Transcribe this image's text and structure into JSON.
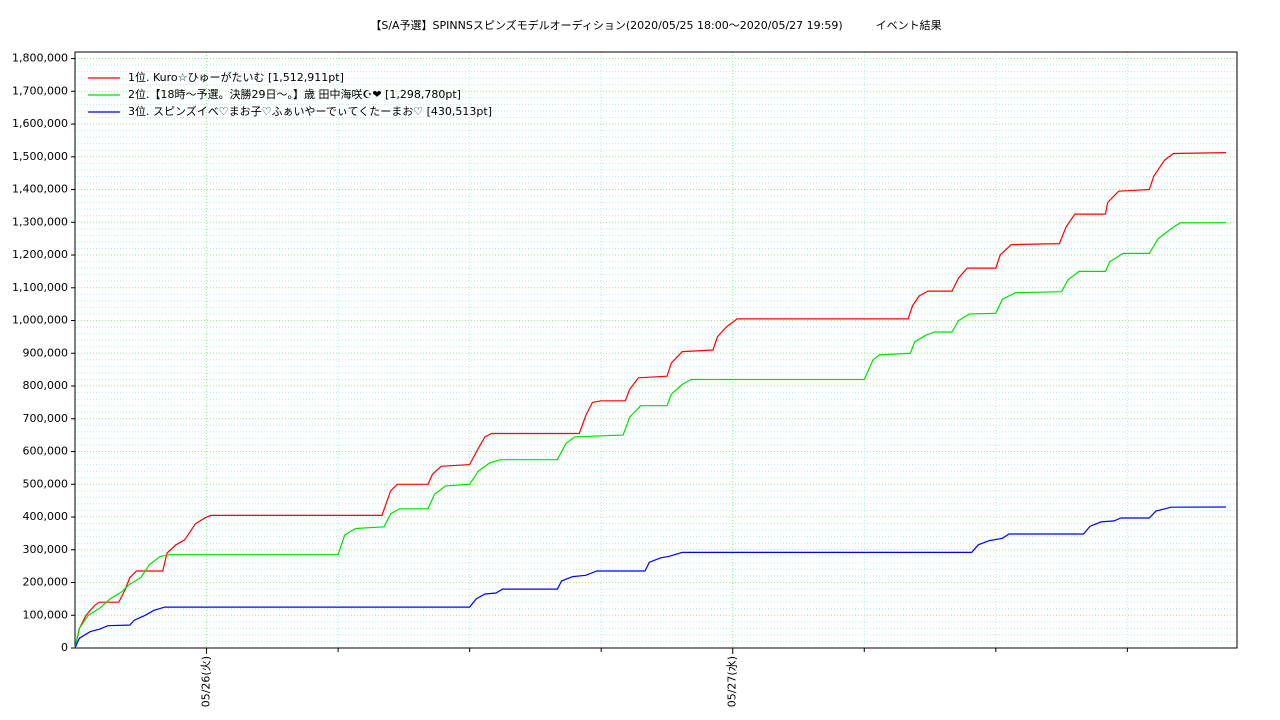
{
  "chart_data": {
    "type": "line",
    "title": "【S/A予選】SPINNSスピンズモデルオーディション(2020/05/25 18:00〜2020/05/27 19:59)　　　イベント結果",
    "xlim": [
      0,
      53
    ],
    "xticks": [
      {
        "value": 6,
        "label": "05/26(火)"
      },
      {
        "value": 30,
        "label": "05/27(水)"
      }
    ],
    "xminor": [
      12,
      18,
      24,
      36,
      42,
      48
    ],
    "ylim": [
      0,
      1820000
    ],
    "yticks": [
      {
        "value": 0,
        "label": "0"
      },
      {
        "value": 100000,
        "label": "100,000"
      },
      {
        "value": 200000,
        "label": "200,000"
      },
      {
        "value": 300000,
        "label": "300,000"
      },
      {
        "value": 400000,
        "label": "400,000"
      },
      {
        "value": 500000,
        "label": "500,000"
      },
      {
        "value": 600000,
        "label": "600,000"
      },
      {
        "value": 700000,
        "label": "700,000"
      },
      {
        "value": 800000,
        "label": "800,000"
      },
      {
        "value": 900000,
        "label": "900,000"
      },
      {
        "value": 1000000,
        "label": "1,000,000"
      },
      {
        "value": 1100000,
        "label": "1,100,000"
      },
      {
        "value": 1200000,
        "label": "1,200,000"
      },
      {
        "value": 1300000,
        "label": "1,300,000"
      },
      {
        "value": 1400000,
        "label": "1,400,000"
      },
      {
        "value": 1500000,
        "label": "1,500,000"
      },
      {
        "value": 1600000,
        "label": "1,600,000"
      },
      {
        "value": 1700000,
        "label": "1,700,000"
      },
      {
        "value": 1800000,
        "label": "1,800,000"
      }
    ],
    "grid": true,
    "legend": "top-left",
    "series": [
      {
        "name": "1位. Kuro☆ひゅーがたいむ [1,512,911pt]",
        "color": "#ff0000",
        "x": [
          0,
          0.2,
          0.5,
          0.9,
          1.1,
          2,
          2.3,
          2.5,
          2.8,
          4,
          4.2,
          4.6,
          5,
          5.5,
          6,
          6.2,
          14,
          14.4,
          14.7,
          16.1,
          16.3,
          16.7,
          18,
          18.4,
          18.7,
          19,
          23,
          23.3,
          23.6,
          24,
          25.1,
          25.3,
          25.7,
          27,
          27.2,
          27.7,
          29.1,
          29.3,
          29.7,
          30.2,
          38,
          38.2,
          38.5,
          38.9,
          40,
          40.3,
          40.7,
          42,
          42.2,
          42.7,
          44.9,
          45.2,
          45.6,
          47,
          47.1,
          47.6,
          49,
          49.2,
          49.7,
          50.1,
          52.5
        ],
        "values": [
          0,
          60000,
          100000,
          130000,
          140000,
          140000,
          180000,
          215000,
          235000,
          235000,
          290000,
          315000,
          330000,
          380000,
          400000,
          405000,
          405000,
          480000,
          500000,
          500000,
          530000,
          555000,
          560000,
          610000,
          645000,
          655000,
          655000,
          710000,
          750000,
          755000,
          755000,
          790000,
          825000,
          830000,
          870000,
          905000,
          910000,
          950000,
          980000,
          1005000,
          1005000,
          1045000,
          1075000,
          1090000,
          1090000,
          1130000,
          1160000,
          1160000,
          1200000,
          1232000,
          1235000,
          1285000,
          1325000,
          1325000,
          1360000,
          1395000,
          1400000,
          1440000,
          1490000,
          1510000,
          1512911
        ]
      },
      {
        "name": "2位.【18時〜予選。決勝29日〜。】歳 田中海咲☪︎❤ [1,298,780pt]",
        "color": "#00e000",
        "x": [
          0,
          0.2,
          0.6,
          1.1,
          1.6,
          2.1,
          2.5,
          3,
          3.4,
          3.9,
          4.3,
          12,
          12.3,
          12.8,
          14.1,
          14.4,
          14.8,
          16.1,
          16.4,
          16.9,
          18,
          18.4,
          18.9,
          19.4,
          22,
          22.4,
          22.8,
          25,
          25.3,
          25.8,
          27,
          27.2,
          27.7,
          28.1,
          36,
          36.4,
          36.7,
          38.1,
          38.3,
          38.8,
          39.2,
          40,
          40.3,
          40.8,
          42,
          42.3,
          42.9,
          45,
          45.3,
          45.8,
          47,
          47.2,
          47.8,
          49,
          49.4,
          50,
          50.4,
          52.5
        ],
        "values": [
          0,
          60000,
          100000,
          120000,
          150000,
          170000,
          195000,
          215000,
          255000,
          280000,
          285000,
          285000,
          345000,
          365000,
          370000,
          410000,
          425000,
          425000,
          470000,
          495000,
          500000,
          540000,
          565000,
          575000,
          575000,
          625000,
          645000,
          650000,
          705000,
          740000,
          740000,
          775000,
          805000,
          820000,
          820000,
          880000,
          895000,
          900000,
          935000,
          955000,
          965000,
          965000,
          1000000,
          1020000,
          1022000,
          1065000,
          1085000,
          1088000,
          1125000,
          1150000,
          1150000,
          1180000,
          1205000,
          1205000,
          1250000,
          1280000,
          1298000,
          1298780
        ]
      },
      {
        "name": "3位. スピンズイベ♡まお子♡ふぁいやーでぃてくたーまお♡ [430,513pt]",
        "color": "#0000ff",
        "x": [
          0,
          0.2,
          0.7,
          1.1,
          1.5,
          2.5,
          2.7,
          3.2,
          3.6,
          4.1,
          18,
          18.3,
          18.7,
          19.2,
          19.5,
          22,
          22.2,
          22.7,
          23.3,
          23.8,
          26,
          26.2,
          26.7,
          27.1,
          27.7,
          40.9,
          41.2,
          41.7,
          42.3,
          42.6,
          46,
          46.3,
          46.8,
          47.4,
          47.7,
          49,
          49.3,
          50,
          52.5
        ],
        "values": [
          0,
          30000,
          50000,
          57000,
          68000,
          70000,
          85000,
          100000,
          115000,
          125000,
          125000,
          150000,
          165000,
          168000,
          180000,
          180000,
          205000,
          218000,
          222000,
          235000,
          235000,
          262000,
          275000,
          280000,
          292000,
          292000,
          315000,
          328000,
          335000,
          348000,
          348000,
          372000,
          385000,
          388000,
          397000,
          397000,
          418000,
          430000,
          430513
        ]
      }
    ]
  }
}
